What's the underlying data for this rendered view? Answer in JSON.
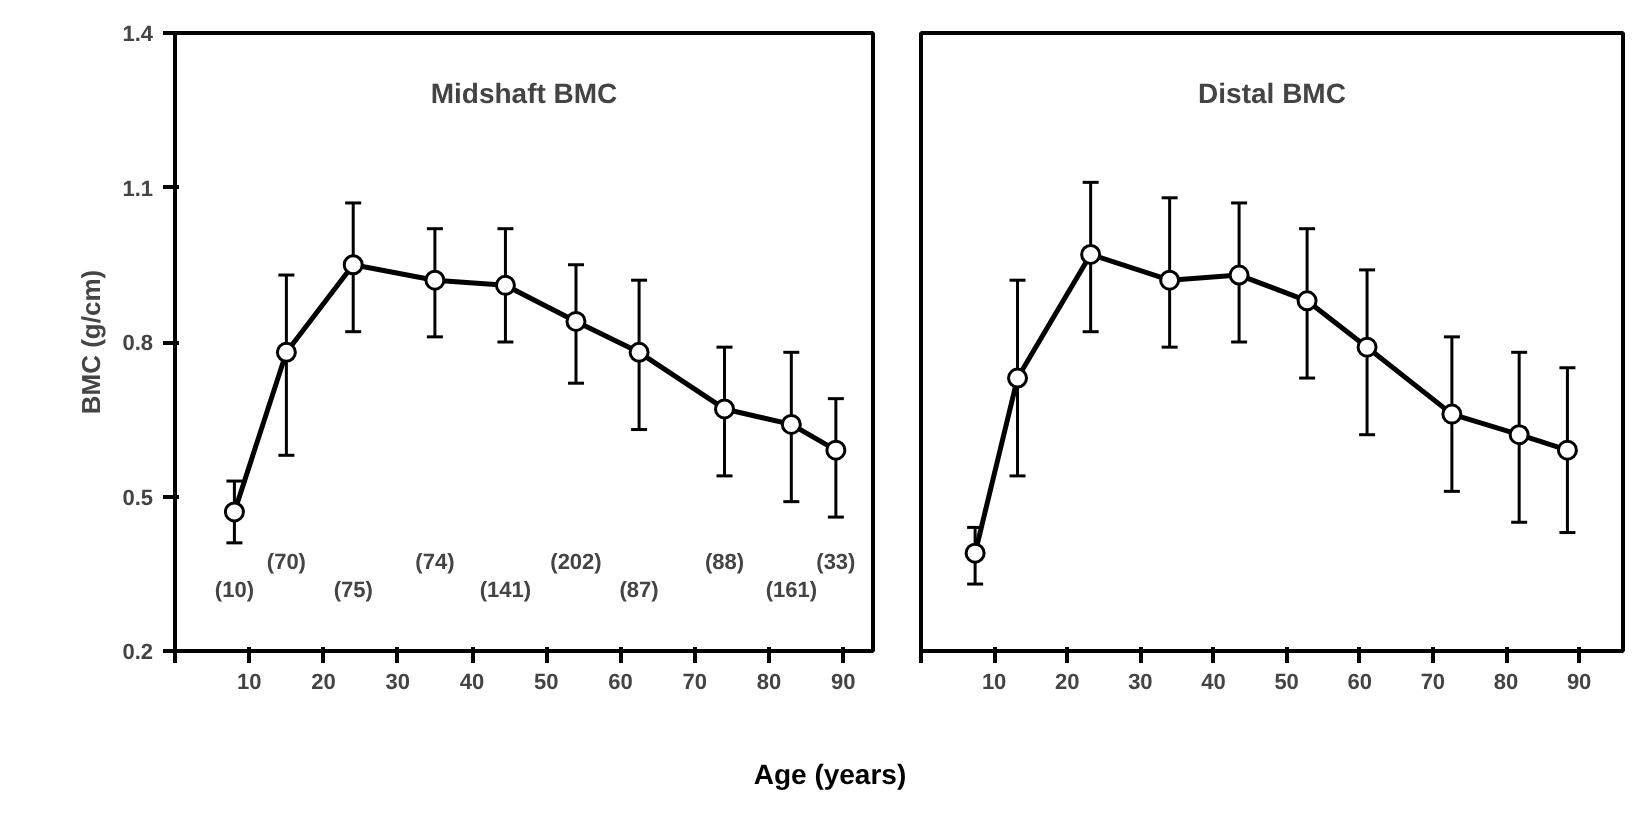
{
  "chart_data": [
    {
      "type": "line",
      "title": "Midshaft BMC",
      "ylabel": "BMC (g/cm)",
      "xlabel": "Age (years)",
      "xlim": [
        0,
        94
      ],
      "xticks": [
        {
          "value": 0,
          "label": null
        },
        10,
        20,
        30,
        40,
        50,
        60,
        70,
        80,
        90
      ],
      "ylim": [
        0.2,
        1.4
      ],
      "yticks": [
        0.2,
        0.5,
        0.8,
        1.1,
        1.4
      ],
      "x": [
        8,
        15,
        24,
        35,
        44.5,
        54,
        62.5,
        74,
        83,
        89
      ],
      "series": [
        {
          "color": "#000000",
          "values": [
            0.47,
            0.78,
            0.95,
            0.92,
            0.91,
            0.84,
            0.78,
            0.67,
            0.64,
            0.59
          ],
          "errors": [
            [
              0.41,
              0.53
            ],
            [
              0.58,
              0.93
            ],
            [
              0.82,
              1.07
            ],
            [
              0.81,
              1.02
            ],
            [
              0.8,
              1.02
            ],
            [
              0.72,
              0.95
            ],
            [
              0.63,
              0.92
            ],
            [
              0.54,
              0.79
            ],
            [
              0.49,
              0.78
            ],
            [
              0.46,
              0.69
            ]
          ]
        }
      ],
      "marker": "circle",
      "line_style": "solid",
      "grid": false,
      "annotations": [
        "(10)",
        "(70)",
        "(75)",
        "(74)",
        "(141)",
        "(202)",
        "(87)",
        "(88)",
        "(161)",
        "(33)"
      ]
    },
    {
      "type": "line",
      "title": "Distal BMC",
      "xlim": [
        0,
        96
      ],
      "xticks": [
        {
          "value": 0,
          "label": null
        },
        10,
        20,
        30,
        40,
        50,
        60,
        70,
        80,
        90
      ],
      "ylim": [
        0.2,
        1.4
      ],
      "tick_labels": "x",
      "x": [
        7.4,
        13.2,
        23.2,
        34,
        43.5,
        52.8,
        61,
        72.6,
        81.8,
        88.4
      ],
      "series": [
        {
          "color": "#000000",
          "values": [
            0.39,
            0.73,
            0.97,
            0.92,
            0.93,
            0.88,
            0.79,
            0.66,
            0.62,
            0.59
          ],
          "errors": [
            [
              0.33,
              0.44
            ],
            [
              0.54,
              0.92
            ],
            [
              0.82,
              1.11
            ],
            [
              0.79,
              1.08
            ],
            [
              0.8,
              1.07
            ],
            [
              0.73,
              1.02
            ],
            [
              0.62,
              0.94
            ],
            [
              0.51,
              0.81
            ],
            [
              0.45,
              0.78
            ],
            [
              0.43,
              0.75
            ]
          ]
        }
      ],
      "marker": "circle",
      "line_style": "solid",
      "grid": false
    }
  ]
}
